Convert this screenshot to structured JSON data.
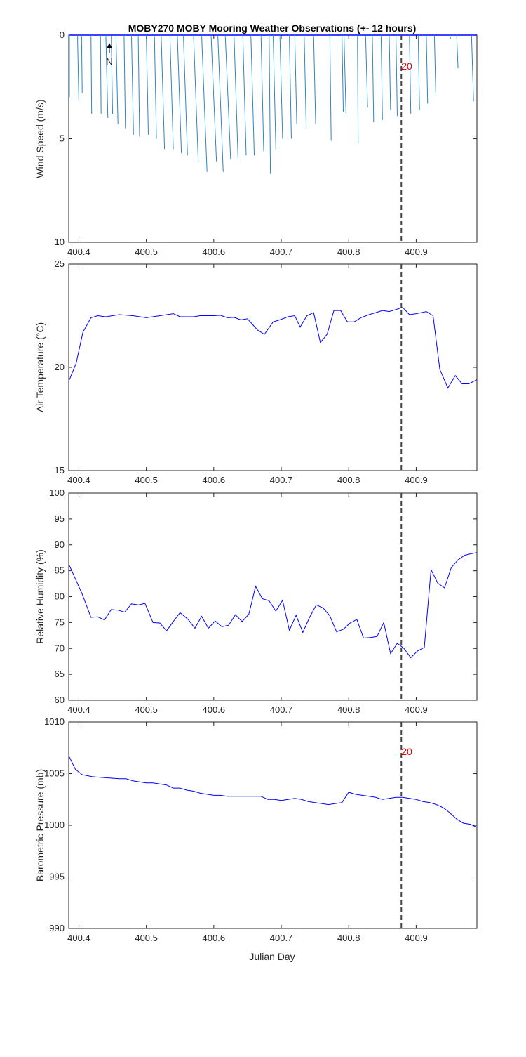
{
  "figure": {
    "title": "MOBY270 MOBY Mooring Weather Observations (+- 12 hours)",
    "xlabel": "Julian Day",
    "marker_label": "20",
    "north_label": "N",
    "colors": {
      "wind_sticks": "#2e86c1",
      "line": "#0000ff",
      "marker_line": "#444444",
      "marker_text": "#e00000",
      "axes": "#262626",
      "background": "#ffffff"
    }
  },
  "chart_data": [
    {
      "type": "line",
      "subtype": "wind-stick",
      "ylabel": "Wind Speed (m/s)",
      "xlim": [
        400.385,
        400.99
      ],
      "ylim": [
        0,
        10
      ],
      "y_reversed": true,
      "x_ticks": [
        "400.4",
        "400.5",
        "400.6",
        "400.7",
        "400.8",
        "400.9"
      ],
      "y_ticks": [
        "0",
        "5",
        "10"
      ],
      "vertical_marker_x": 400.878,
      "marker_text": "20",
      "sticks": [
        [
          400.386,
          0,
          3.0
        ],
        [
          400.398,
          0.002,
          3.2
        ],
        [
          400.404,
          0.001,
          2.8
        ],
        [
          400.418,
          0.001,
          3.8
        ],
        [
          400.432,
          0.001,
          3.8
        ],
        [
          400.44,
          0.003,
          4.0
        ],
        [
          400.448,
          0.002,
          3.8
        ],
        [
          400.455,
          0.003,
          4.3
        ],
        [
          400.467,
          0.002,
          4.5
        ],
        [
          400.478,
          0.003,
          4.8
        ],
        [
          400.488,
          0.002,
          4.9
        ],
        [
          400.5,
          0.003,
          4.8
        ],
        [
          400.512,
          0.003,
          5.0
        ],
        [
          400.522,
          0.005,
          5.5
        ],
        [
          400.535,
          0.005,
          5.5
        ],
        [
          400.546,
          0.006,
          5.7
        ],
        [
          400.555,
          0.006,
          5.8
        ],
        [
          400.57,
          0.007,
          6.1
        ],
        [
          400.582,
          0.008,
          6.6
        ],
        [
          400.596,
          0.008,
          6.1
        ],
        [
          400.606,
          0.008,
          6.6
        ],
        [
          400.617,
          0.008,
          6.0
        ],
        [
          400.63,
          0.006,
          6.0
        ],
        [
          400.643,
          0.005,
          5.8
        ],
        [
          400.655,
          0.005,
          5.8
        ],
        [
          400.67,
          0.004,
          5.6
        ],
        [
          400.682,
          0.002,
          6.7
        ],
        [
          400.688,
          0.004,
          5.5
        ],
        [
          400.698,
          0.004,
          5.0
        ],
        [
          400.712,
          0.003,
          5.0
        ],
        [
          400.72,
          0.003,
          4.3
        ],
        [
          400.734,
          0.003,
          4.5
        ],
        [
          400.748,
          0.003,
          4.3
        ],
        [
          400.772,
          0.002,
          5.1
        ],
        [
          400.79,
          0.002,
          3.7
        ],
        [
          400.793,
          0.003,
          3.8
        ],
        [
          400.813,
          0.001,
          5.2
        ],
        [
          400.825,
          0.003,
          3.5
        ],
        [
          400.835,
          0.002,
          4.2
        ],
        [
          400.848,
          0.002,
          4.1
        ],
        [
          400.86,
          0.002,
          3.6
        ],
        [
          400.87,
          0.002,
          3.9
        ],
        [
          400.89,
          0.002,
          3.8
        ],
        [
          400.903,
          0.002,
          3.6
        ],
        [
          400.915,
          0.002,
          3.3
        ],
        [
          400.927,
          0.002,
          2.8
        ],
        [
          400.95,
          0.001,
          0.2
        ],
        [
          400.96,
          0.002,
          1.6
        ],
        [
          400.982,
          0.003,
          3.2
        ]
      ]
    },
    {
      "type": "line",
      "ylabel": "Air Temperature (°C)",
      "xlim": [
        400.385,
        400.99
      ],
      "ylim": [
        15,
        25
      ],
      "y_ticks": [
        "15",
        "20",
        "25"
      ],
      "x_ticks": [
        "400.4",
        "400.5",
        "400.6",
        "400.7",
        "400.8",
        "400.9"
      ],
      "vertical_marker_x": 400.878,
      "x": [
        400.386,
        400.396,
        400.406,
        400.418,
        400.428,
        400.44,
        400.46,
        400.48,
        400.5,
        400.52,
        400.54,
        400.55,
        400.57,
        400.58,
        400.6,
        400.61,
        400.62,
        400.63,
        400.64,
        400.65,
        400.665,
        400.675,
        400.688,
        400.698,
        400.71,
        400.72,
        400.728,
        400.738,
        400.748,
        400.758,
        400.768,
        400.778,
        400.788,
        400.798,
        400.808,
        400.818,
        400.83,
        400.84,
        400.85,
        400.86,
        400.87,
        400.88,
        400.89,
        400.9,
        400.915,
        400.925,
        400.935,
        400.947,
        400.958,
        400.968,
        400.978,
        400.99
      ],
      "y": [
        19.4,
        20.2,
        21.7,
        22.4,
        22.5,
        22.45,
        22.55,
        22.5,
        22.4,
        22.5,
        22.6,
        22.45,
        22.45,
        22.5,
        22.5,
        22.52,
        22.4,
        22.42,
        22.3,
        22.35,
        21.8,
        21.6,
        22.2,
        22.3,
        22.45,
        22.5,
        21.95,
        22.5,
        22.65,
        21.2,
        21.6,
        22.75,
        22.75,
        22.2,
        22.2,
        22.4,
        22.55,
        22.65,
        22.75,
        22.7,
        22.8,
        22.9,
        22.55,
        22.6,
        22.7,
        22.5,
        19.9,
        19.0,
        19.6,
        19.2,
        19.2,
        19.4
      ]
    },
    {
      "type": "line",
      "ylabel": "Relative Humidity (%)",
      "xlim": [
        400.385,
        400.99
      ],
      "ylim": [
        60,
        100
      ],
      "y_ticks": [
        "60",
        "65",
        "70",
        "75",
        "80",
        "85",
        "90",
        "95",
        "100"
      ],
      "x_ticks": [
        "400.4",
        "400.5",
        "400.6",
        "400.7",
        "400.8",
        "400.9"
      ],
      "vertical_marker_x": 400.878,
      "x": [
        400.386,
        400.405,
        400.418,
        400.428,
        400.438,
        400.448,
        400.458,
        400.468,
        400.478,
        400.488,
        400.498,
        400.51,
        400.52,
        400.53,
        400.54,
        400.55,
        400.562,
        400.572,
        400.582,
        400.592,
        400.602,
        400.612,
        400.622,
        400.632,
        400.642,
        400.652,
        400.662,
        400.672,
        400.682,
        400.692,
        400.702,
        400.712,
        400.722,
        400.732,
        400.742,
        400.752,
        400.762,
        400.772,
        400.782,
        400.792,
        400.802,
        400.812,
        400.822,
        400.832,
        400.842,
        400.852,
        400.862,
        400.872,
        400.882,
        400.892,
        400.902,
        400.912,
        400.922,
        400.932,
        400.942,
        400.952,
        400.962,
        400.972,
        400.982,
        400.99
      ],
      "y": [
        86,
        80.5,
        76,
        76.1,
        75.5,
        77.5,
        77.4,
        77,
        78.6,
        78.4,
        78.7,
        75,
        74.9,
        73.4,
        75.2,
        76.9,
        75.6,
        73.9,
        76.2,
        73.9,
        75.3,
        74.2,
        74.5,
        76.5,
        75.2,
        76.6,
        82,
        79.6,
        79.2,
        77.2,
        79.3,
        73.5,
        76.4,
        73.1,
        76,
        78.4,
        77.8,
        76.3,
        73.2,
        73.7,
        74.9,
        75.6,
        72,
        72.1,
        72.3,
        75,
        69,
        71,
        70,
        68.2,
        69.5,
        70.2,
        85.2,
        82.6,
        81.7,
        85.6,
        87.1,
        88,
        88.3,
        88.5
      ]
    },
    {
      "type": "line",
      "ylabel": "Barometric Pressure (mb)",
      "xlabel": "Julian Day",
      "xlim": [
        400.385,
        400.99
      ],
      "ylim": [
        990,
        1010
      ],
      "y_ticks": [
        "990",
        "995",
        "1000",
        "1005",
        "1010"
      ],
      "x_ticks": [
        "400.4",
        "400.5",
        "400.6",
        "400.7",
        "400.8",
        "400.9"
      ],
      "vertical_marker_x": 400.878,
      "marker_text": "20",
      "x": [
        400.386,
        400.395,
        400.405,
        400.42,
        400.44,
        400.46,
        400.47,
        400.48,
        400.49,
        400.5,
        400.51,
        400.52,
        400.53,
        400.54,
        400.55,
        400.56,
        400.57,
        400.58,
        400.59,
        400.6,
        400.61,
        400.62,
        400.63,
        400.64,
        400.65,
        400.66,
        400.67,
        400.68,
        400.69,
        400.7,
        400.71,
        400.72,
        400.73,
        400.74,
        400.75,
        400.76,
        400.77,
        400.78,
        400.79,
        400.8,
        400.81,
        400.82,
        400.83,
        400.84,
        400.85,
        400.86,
        400.87,
        400.88,
        400.89,
        400.9,
        400.91,
        400.92,
        400.93,
        400.94,
        400.95,
        400.96,
        400.97,
        400.98,
        400.99
      ],
      "y": [
        1006.6,
        1005.4,
        1004.9,
        1004.7,
        1004.6,
        1004.5,
        1004.5,
        1004.3,
        1004.2,
        1004.1,
        1004.1,
        1004,
        1003.9,
        1003.6,
        1003.6,
        1003.4,
        1003.3,
        1003.1,
        1003,
        1002.9,
        1002.9,
        1002.8,
        1002.8,
        1002.8,
        1002.8,
        1002.8,
        1002.8,
        1002.5,
        1002.5,
        1002.4,
        1002.5,
        1002.6,
        1002.5,
        1002.3,
        1002.2,
        1002.1,
        1002,
        1002.1,
        1002.2,
        1003.2,
        1003,
        1002.9,
        1002.8,
        1002.7,
        1002.5,
        1002.6,
        1002.7,
        1002.7,
        1002.6,
        1002.5,
        1002.3,
        1002.2,
        1002,
        1001.7,
        1001.2,
        1000.6,
        1000.2,
        1000.1,
        999.8
      ]
    }
  ]
}
